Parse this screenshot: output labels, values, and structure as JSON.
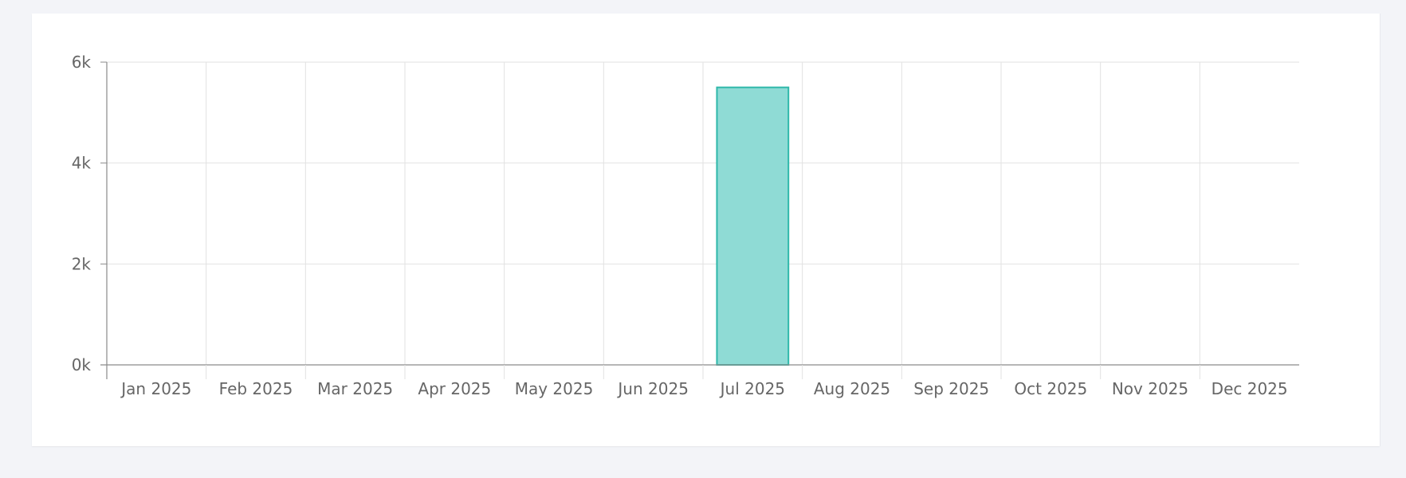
{
  "chart_data": {
    "type": "bar",
    "categories": [
      "Jan 2025",
      "Feb 2025",
      "Mar 2025",
      "Apr 2025",
      "May 2025",
      "Jun 2025",
      "Jul 2025",
      "Aug 2025",
      "Sep 2025",
      "Oct 2025",
      "Nov 2025",
      "Dec 2025"
    ],
    "values": [
      0,
      0,
      0,
      0,
      0,
      0,
      5500,
      0,
      0,
      0,
      0,
      0
    ],
    "ylim": [
      0,
      6000
    ],
    "yticks": [
      0,
      2000,
      4000,
      6000
    ],
    "ytick_labels": [
      "0k",
      "2k",
      "4k",
      "6k"
    ],
    "grid": true,
    "colors": {
      "bar_fill": "#8fdbd5",
      "bar_stroke": "#2fb8aa",
      "grid": "#e2e2e2",
      "axis": "#8a8a8a",
      "text": "#666666"
    }
  }
}
